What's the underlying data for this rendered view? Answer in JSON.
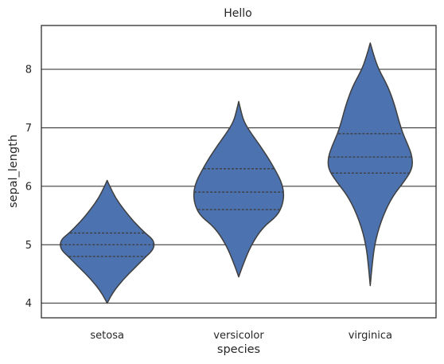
{
  "chart_data": {
    "type": "violin",
    "title": "Hello",
    "xlabel": "species",
    "ylabel": "sepal_length",
    "categories": [
      "setosa",
      "versicolor",
      "virginica"
    ],
    "ylim": [
      3.75,
      8.75
    ],
    "yticks": [
      4,
      5,
      6,
      7,
      8
    ],
    "grid": true,
    "color": "#4c72b0",
    "violins": [
      {
        "name": "setosa",
        "min": 4.0,
        "max": 6.1,
        "q1": 4.8,
        "median": 5.0,
        "q3": 5.2,
        "profile": [
          [
            4.0,
            0.0
          ],
          [
            4.2,
            0.12
          ],
          [
            4.4,
            0.3
          ],
          [
            4.6,
            0.52
          ],
          [
            4.8,
            0.74
          ],
          [
            4.9,
            0.86
          ],
          [
            5.0,
            0.9
          ],
          [
            5.1,
            0.86
          ],
          [
            5.2,
            0.72
          ],
          [
            5.4,
            0.5
          ],
          [
            5.6,
            0.32
          ],
          [
            5.8,
            0.16
          ],
          [
            6.0,
            0.05
          ],
          [
            6.1,
            0.0
          ]
        ]
      },
      {
        "name": "versicolor",
        "min": 4.45,
        "max": 7.45,
        "q1": 5.6,
        "median": 5.9,
        "q3": 6.3,
        "profile": [
          [
            4.45,
            0.0
          ],
          [
            4.7,
            0.1
          ],
          [
            5.0,
            0.24
          ],
          [
            5.3,
            0.46
          ],
          [
            5.5,
            0.74
          ],
          [
            5.7,
            0.84
          ],
          [
            5.9,
            0.86
          ],
          [
            6.1,
            0.8
          ],
          [
            6.3,
            0.68
          ],
          [
            6.5,
            0.55
          ],
          [
            6.7,
            0.4
          ],
          [
            6.9,
            0.24
          ],
          [
            7.1,
            0.1
          ],
          [
            7.3,
            0.04
          ],
          [
            7.45,
            0.0
          ]
        ]
      },
      {
        "name": "virginica",
        "min": 4.3,
        "max": 8.45,
        "q1": 6.225,
        "median": 6.5,
        "q3": 6.9,
        "profile": [
          [
            4.3,
            0.0
          ],
          [
            4.6,
            0.03
          ],
          [
            5.0,
            0.08
          ],
          [
            5.4,
            0.2
          ],
          [
            5.8,
            0.4
          ],
          [
            6.1,
            0.66
          ],
          [
            6.3,
            0.8
          ],
          [
            6.5,
            0.8
          ],
          [
            6.7,
            0.72
          ],
          [
            6.9,
            0.62
          ],
          [
            7.1,
            0.55
          ],
          [
            7.4,
            0.46
          ],
          [
            7.7,
            0.34
          ],
          [
            8.0,
            0.16
          ],
          [
            8.2,
            0.08
          ],
          [
            8.45,
            0.0
          ]
        ]
      }
    ]
  }
}
